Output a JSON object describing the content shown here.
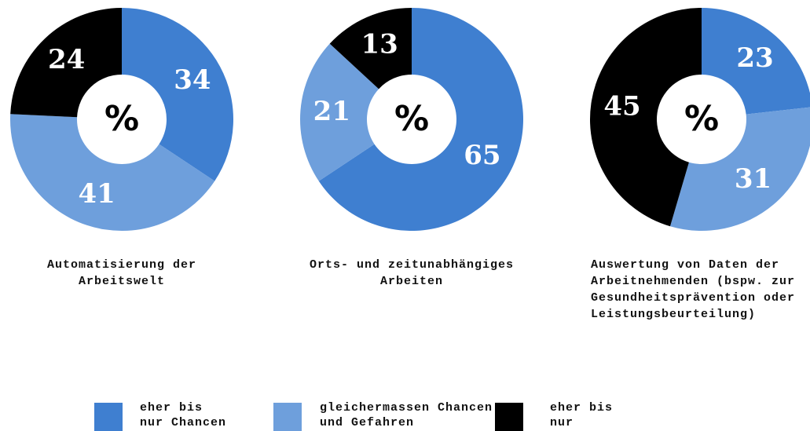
{
  "chart_data": [
    {
      "type": "donut",
      "title": "Automatisierung der Arbeitswelt",
      "center_label": "%",
      "categories": [
        "eher bis nur Chancen",
        "gleichermassen Chancen und Gefahren",
        "eher bis nur Gefahren"
      ],
      "values": [
        34,
        41,
        24
      ],
      "colors": [
        "#3f7fd0",
        "#6e9fdc",
        "#000000"
      ]
    },
    {
      "type": "donut",
      "title": "Orts- und zeitunabhängiges Arbeiten",
      "center_label": "%",
      "categories": [
        "eher bis nur Chancen",
        "gleichermassen Chancen und Gefahren",
        "eher bis nur Gefahren"
      ],
      "values": [
        65,
        21,
        13
      ],
      "colors": [
        "#3f7fd0",
        "#6e9fdc",
        "#000000"
      ]
    },
    {
      "type": "donut",
      "title": "Auswertung von Daten der Arbeitnehmenden (bspw. zur Gesundheitsprävention oder Leistungsbeurteilung)",
      "center_label": "%",
      "categories": [
        "eher bis nur Chancen",
        "gleichermassen Chancen und Gefahren",
        "eher bis nur Gefahren"
      ],
      "values": [
        23,
        31,
        45
      ],
      "colors": [
        "#3f7fd0",
        "#6e9fdc",
        "#000000"
      ]
    }
  ]
}
